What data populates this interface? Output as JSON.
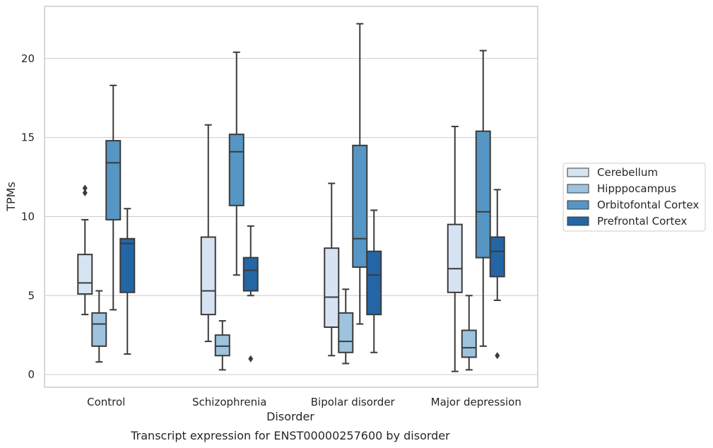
{
  "chart_data": {
    "type": "box",
    "caption": "Transcript expression for ENST00000257600 by disorder",
    "xlabel": "Disorder",
    "ylabel": "TPMs",
    "ylim": [
      -0.8,
      23.3
    ],
    "yticks": [
      0,
      5,
      10,
      15,
      20
    ],
    "grid": true,
    "legend_position": "right",
    "categories": [
      "Control",
      "Schizophrenia",
      "Bipolar disorder",
      "Major depression"
    ],
    "series": [
      {
        "name": "Cerebellum",
        "color": "#d6e3f2",
        "boxes": [
          {
            "whisker_low": 3.8,
            "q1": 5.1,
            "median": 5.8,
            "q3": 7.6,
            "whisker_high": 9.8,
            "outliers": [
              11.5,
              11.8
            ]
          },
          {
            "whisker_low": 2.1,
            "q1": 3.8,
            "median": 5.3,
            "q3": 8.7,
            "whisker_high": 15.8,
            "outliers": []
          },
          {
            "whisker_low": 1.2,
            "q1": 3.0,
            "median": 4.9,
            "q3": 8.0,
            "whisker_high": 12.1,
            "outliers": []
          },
          {
            "whisker_low": 0.2,
            "q1": 5.2,
            "median": 6.7,
            "q3": 9.5,
            "whisker_high": 15.7,
            "outliers": []
          }
        ]
      },
      {
        "name": "Hipppocampus",
        "color": "#9dc3de",
        "boxes": [
          {
            "whisker_low": 0.8,
            "q1": 1.8,
            "median": 3.2,
            "q3": 3.9,
            "whisker_high": 5.3,
            "outliers": []
          },
          {
            "whisker_low": 0.3,
            "q1": 1.2,
            "median": 1.8,
            "q3": 2.5,
            "whisker_high": 3.4,
            "outliers": []
          },
          {
            "whisker_low": 0.7,
            "q1": 1.4,
            "median": 2.1,
            "q3": 3.9,
            "whisker_high": 5.4,
            "outliers": []
          },
          {
            "whisker_low": 0.3,
            "q1": 1.1,
            "median": 1.7,
            "q3": 2.8,
            "whisker_high": 5.0,
            "outliers": []
          }
        ]
      },
      {
        "name": "Orbitofontal Cortex",
        "color": "#5596c4",
        "boxes": [
          {
            "whisker_low": 4.1,
            "q1": 9.8,
            "median": 13.4,
            "q3": 14.8,
            "whisker_high": 18.3,
            "outliers": []
          },
          {
            "whisker_low": 6.3,
            "q1": 10.7,
            "median": 14.1,
            "q3": 15.2,
            "whisker_high": 20.4,
            "outliers": []
          },
          {
            "whisker_low": 3.2,
            "q1": 6.8,
            "median": 8.6,
            "q3": 14.5,
            "whisker_high": 22.2,
            "outliers": []
          },
          {
            "whisker_low": 1.8,
            "q1": 7.4,
            "median": 10.3,
            "q3": 15.4,
            "whisker_high": 20.5,
            "outliers": []
          }
        ]
      },
      {
        "name": "Prefrontal Cortex",
        "color": "#2465a6",
        "boxes": [
          {
            "whisker_low": 1.3,
            "q1": 5.2,
            "median": 8.3,
            "q3": 8.6,
            "whisker_high": 10.5,
            "outliers": []
          },
          {
            "whisker_low": 5.0,
            "q1": 5.3,
            "median": 6.6,
            "q3": 7.4,
            "whisker_high": 9.4,
            "outliers": [
              1.0
            ]
          },
          {
            "whisker_low": 1.4,
            "q1": 3.8,
            "median": 6.3,
            "q3": 7.8,
            "whisker_high": 10.4,
            "outliers": []
          },
          {
            "whisker_low": 4.7,
            "q1": 6.2,
            "median": 7.8,
            "q3": 8.7,
            "whisker_high": 11.7,
            "outliers": [
              1.2
            ]
          }
        ]
      }
    ]
  }
}
